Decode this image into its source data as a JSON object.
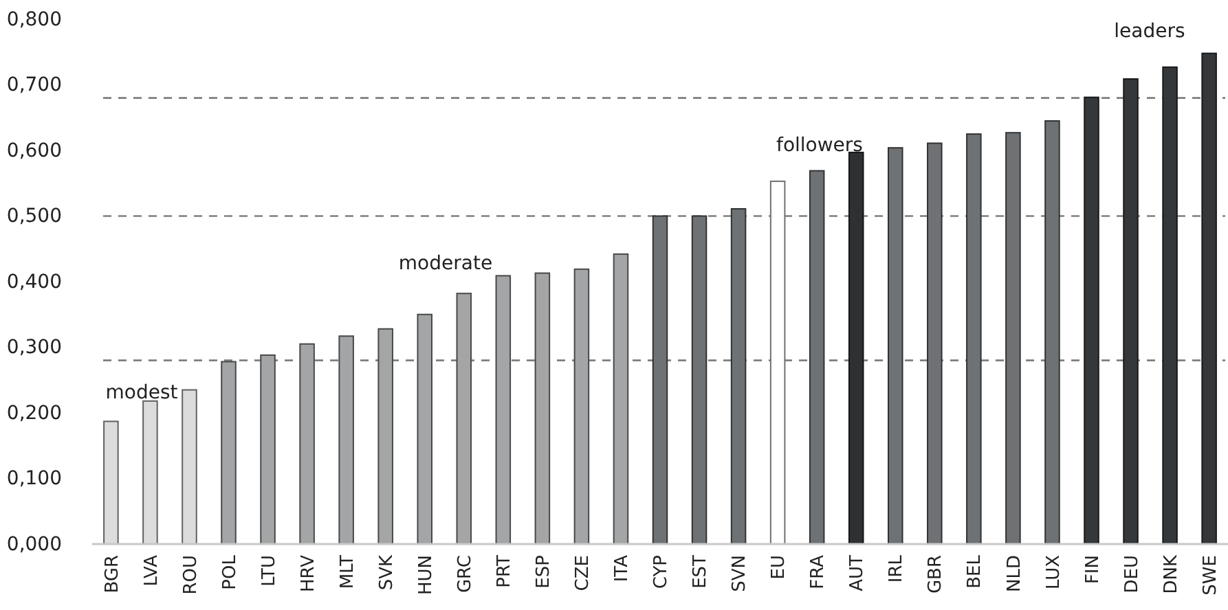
{
  "chart_data": {
    "type": "bar",
    "categories": [
      "BGR",
      "LVA",
      "ROU",
      "POL",
      "LTU",
      "HRV",
      "MLT",
      "SVK",
      "HUN",
      "GRC",
      "PRT",
      "ESP",
      "CZE",
      "ITA",
      "CYP",
      "EST",
      "SVN",
      "EU",
      "FRA",
      "AUT",
      "IRL",
      "GBR",
      "BEL",
      "NLD",
      "LUX",
      "FIN",
      "DEU",
      "DNK",
      "SWE"
    ],
    "values": [
      0.187,
      0.218,
      0.235,
      0.278,
      0.288,
      0.305,
      0.317,
      0.328,
      0.35,
      0.382,
      0.409,
      0.413,
      0.419,
      0.442,
      0.5,
      0.5,
      0.511,
      0.553,
      0.569,
      0.597,
      0.604,
      0.611,
      0.625,
      0.627,
      0.645,
      0.681,
      0.709,
      0.727,
      0.748
    ],
    "colors": [
      "#dcdcdc",
      "#dcdcdc",
      "#dcdcdc",
      "#a3a5a6",
      "#a3a5a6",
      "#a3a5a6",
      "#a3a5a6",
      "#a3a5a6",
      "#a3a5a6",
      "#a3a5a6",
      "#a3a5a6",
      "#a3a5a6",
      "#a3a5a6",
      "#a3a5a6",
      "#6f7274",
      "#6f7274",
      "#6f7274",
      "#ffffff",
      "#6f7274",
      "#2f3032",
      "#6f7274",
      "#6f7274",
      "#6f7274",
      "#6f7274",
      "#6f7274",
      "#35383b",
      "#35383b",
      "#35383b",
      "#35383b"
    ],
    "ylim": [
      0,
      0.8
    ],
    "yticks": [
      {
        "value": 0,
        "label": "0,000"
      },
      {
        "value": 0.1,
        "label": "0,100"
      },
      {
        "value": 0.2,
        "label": "0,200"
      },
      {
        "value": 0.3,
        "label": "0,300"
      },
      {
        "value": 0.4,
        "label": "0,400"
      },
      {
        "value": 0.5,
        "label": "0,500"
      },
      {
        "value": 0.6,
        "label": "0,600"
      },
      {
        "value": 0.7,
        "label": "0,700"
      },
      {
        "value": 0.8,
        "label": "0,800"
      }
    ],
    "grid": false,
    "ref_lines": [
      {
        "axis": "y",
        "value": 0.28,
        "color": "#7f7f7f",
        "line_style": "dashed"
      },
      {
        "axis": "y",
        "value": 0.5,
        "color": "#7f7f7f",
        "line_style": "dashed"
      },
      {
        "axis": "y",
        "value": 0.68,
        "color": "#7f7f7f",
        "line_style": "dashed"
      }
    ],
    "annotations": [
      "modest",
      "moderate",
      "followers",
      "leaders"
    ]
  }
}
